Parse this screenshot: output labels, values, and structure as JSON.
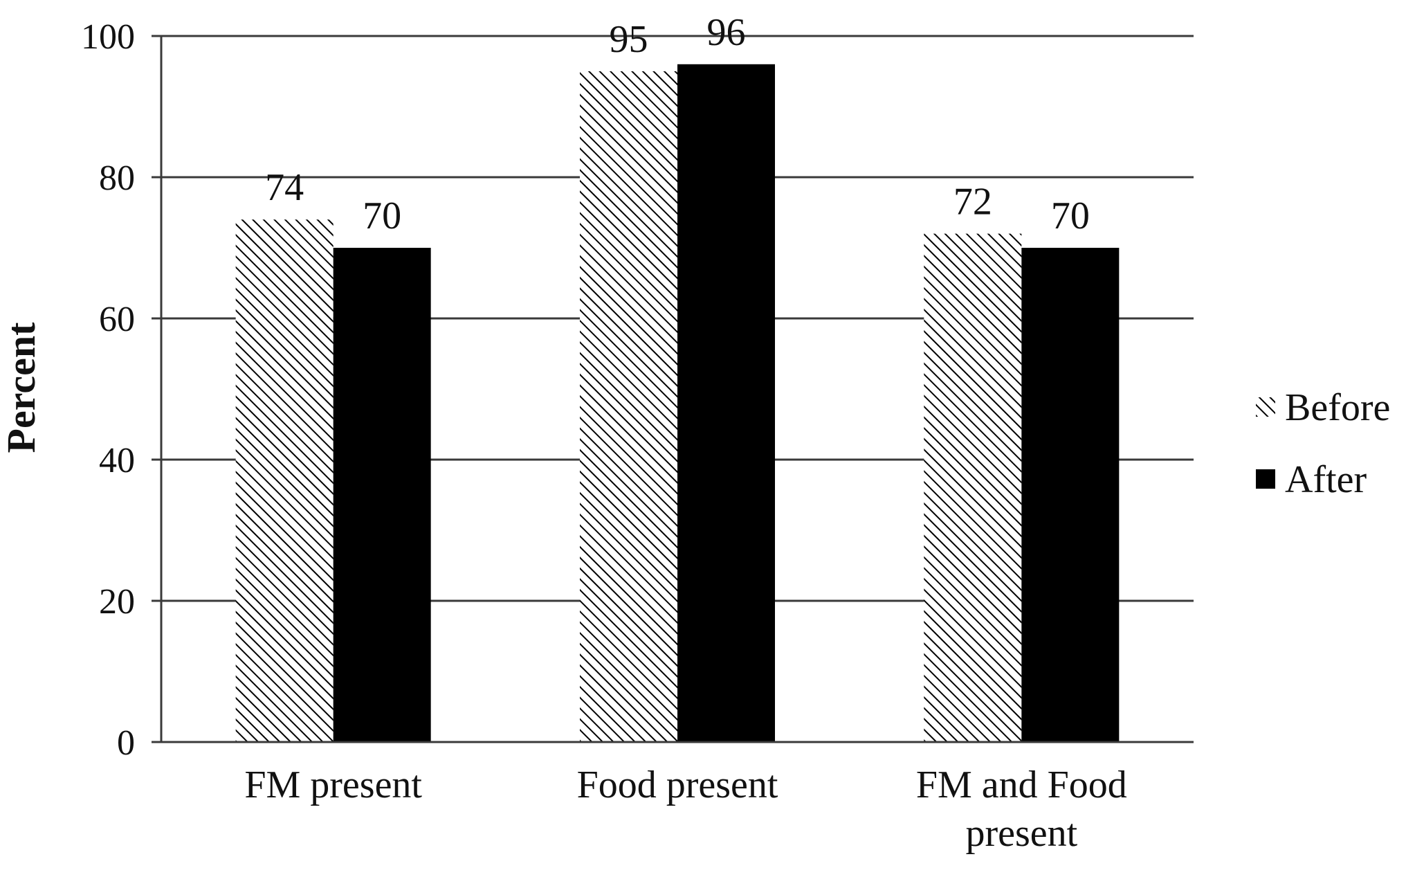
{
  "chart_data": {
    "type": "bar",
    "categories": [
      [
        "FM present"
      ],
      [
        "Food present"
      ],
      [
        "FM and Food",
        "present"
      ]
    ],
    "series": [
      {
        "name": "Before",
        "values": [
          74,
          95,
          72
        ],
        "fill": "hatch",
        "color": "#000000"
      },
      {
        "name": "After",
        "values": [
          70,
          96,
          70
        ],
        "fill": "solid",
        "color": "#000000"
      }
    ],
    "xlabel": "",
    "ylabel": "Percent",
    "ylim": [
      0,
      100
    ],
    "yticks": [
      0,
      20,
      40,
      60,
      80,
      100
    ],
    "grid": true,
    "legend": "right",
    "data_labels": true
  }
}
